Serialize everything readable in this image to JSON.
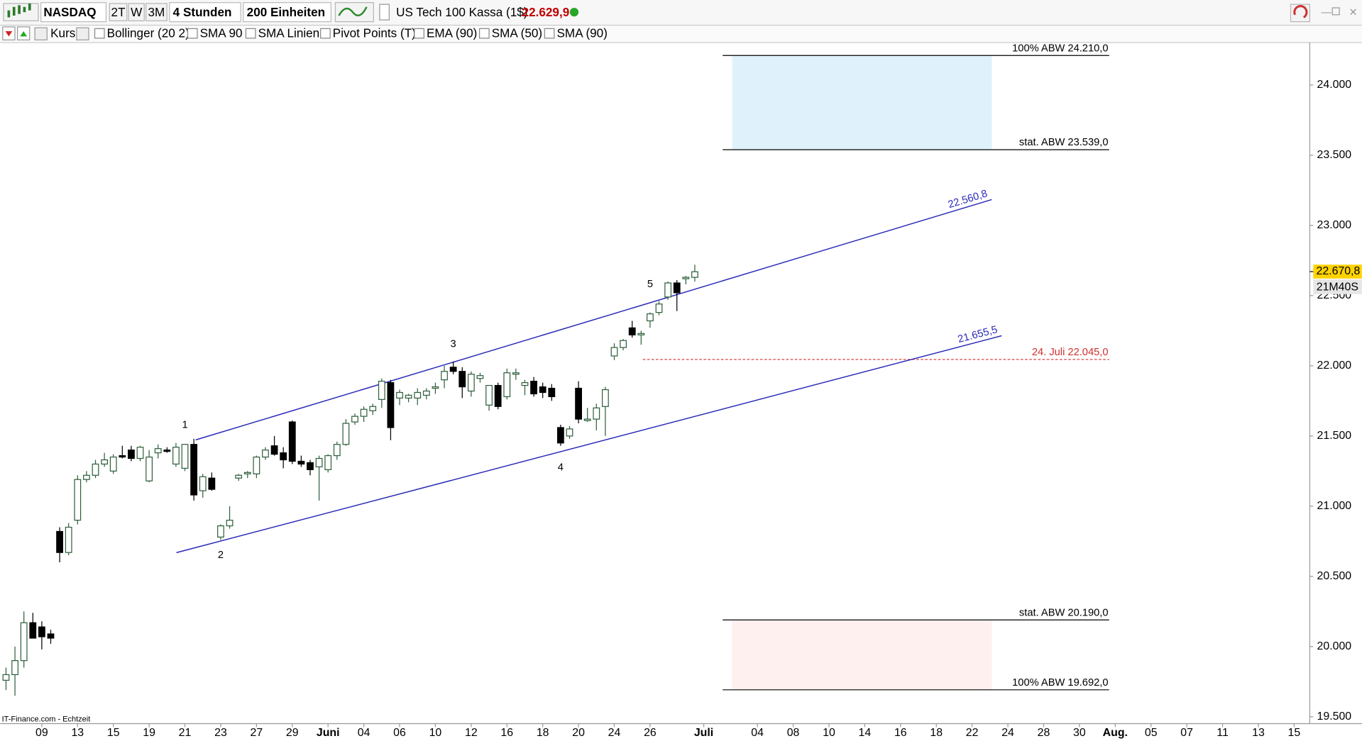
{
  "toolbar": {
    "symbol": "NASDAQ",
    "periods": [
      "2T",
      "W",
      "3M"
    ],
    "interval": "4 Stunden",
    "units": "200 Einheiten",
    "instrument": "US Tech 100 Kassa (1$)",
    "last_price": "22.629,9",
    "indicators": [
      "Kurs",
      "Bollinger (20 2)",
      "SMA 90",
      "SMA Linien",
      "Pivot Points (T)",
      "EMA (90)",
      "SMA (50)",
      "SMA (90)"
    ]
  },
  "chart_data": {
    "type": "candlestick",
    "source": "IT-Finance.com - Echtzeit",
    "x": [
      -4,
      -3,
      -2,
      -1,
      0,
      1,
      2,
      3,
      4,
      5,
      6,
      7,
      8,
      9,
      10,
      11,
      12,
      13,
      14,
      15,
      16,
      17,
      18,
      19,
      20,
      21,
      22,
      23,
      24,
      25,
      26,
      27,
      28,
      29,
      30,
      31,
      32,
      33,
      34,
      35,
      36,
      37,
      38,
      39,
      40,
      41,
      42,
      43,
      44,
      45,
      46,
      47,
      48,
      49,
      50,
      51,
      52,
      53,
      54,
      55,
      56,
      57,
      58,
      59,
      60,
      61,
      62,
      63,
      64,
      65,
      66,
      67,
      68,
      69,
      70,
      71,
      72,
      73
    ],
    "open": [
      19760,
      19800,
      19900,
      20170,
      20140,
      20090,
      20820,
      20670,
      20900,
      21190,
      21220,
      21300,
      21250,
      21360,
      21400,
      21340,
      21180,
      21380,
      21400,
      21300,
      21270,
      21440,
      21110,
      21200,
      20780,
      20860,
      21200,
      21230,
      21230,
      21350,
      21430,
      21380,
      21600,
      21320,
      21310,
      21280,
      21260,
      21360,
      21440,
      21600,
      21640,
      21680,
      21760,
      21880,
      21770,
      21770,
      21770,
      21790,
      21840,
      21900,
      21990,
      21960,
      21820,
      21910,
      21720,
      21860,
      21780,
      21940,
      21860,
      21890,
      21850,
      21840,
      21560,
      21500,
      21840,
      21610,
      21620,
      21710,
      22070,
      22130,
      22270,
      22220,
      22320,
      22380,
      22490,
      22590,
      22620,
      22630
    ],
    "high": [
      19850,
      20000,
      20250,
      20240,
      20180,
      20120,
      20850,
      20880,
      21220,
      21250,
      21330,
      21380,
      21370,
      21430,
      21430,
      21430,
      21400,
      21440,
      21420,
      21450,
      21440,
      21480,
      21230,
      21240,
      20870,
      21000,
      21230,
      21250,
      21360,
      21420,
      21500,
      21420,
      21610,
      21360,
      21330,
      21360,
      21370,
      21460,
      21620,
      21660,
      21710,
      21730,
      21910,
      21900,
      21830,
      21800,
      21840,
      21840,
      21880,
      22000,
      22030,
      21990,
      21960,
      21950,
      21860,
      21880,
      21980,
      21980,
      21900,
      21920,
      21880,
      21870,
      21580,
      21570,
      21890,
      21700,
      21730,
      21850,
      22160,
      22190,
      22320,
      22250,
      22380,
      22460,
      22600,
      22610,
      22640,
      22720
    ],
    "low": [
      19690,
      19650,
      19850,
      20060,
      19980,
      20020,
      20600,
      20650,
      20870,
      21170,
      21200,
      21280,
      21230,
      21340,
      21320,
      21320,
      21170,
      21340,
      21380,
      21280,
      21250,
      21040,
      21060,
      21110,
      20760,
      20840,
      21180,
      21200,
      21200,
      21330,
      21360,
      21270,
      21300,
      21280,
      21220,
      21040,
      21240,
      21330,
      21430,
      21580,
      21600,
      21650,
      21700,
      21470,
      21720,
      21740,
      21720,
      21760,
      21800,
      21840,
      21940,
      21770,
      21780,
      21880,
      21680,
      21690,
      21760,
      21900,
      21790,
      21780,
      21770,
      21750,
      21430,
      21480,
      21590,
      21600,
      21540,
      21500,
      22040,
      22110,
      22200,
      22150,
      22270,
      22360,
      22470,
      22390,
      22580,
      22600
    ],
    "close": [
      19800,
      19900,
      20170,
      20060,
      20070,
      20060,
      20670,
      20850,
      21190,
      21220,
      21300,
      21330,
      21350,
      21350,
      21340,
      21420,
      21350,
      21410,
      21390,
      21420,
      21440,
      21080,
      21210,
      21120,
      20860,
      20900,
      21220,
      21240,
      21350,
      21400,
      21370,
      21330,
      21320,
      21300,
      21260,
      21340,
      21360,
      21440,
      21590,
      21640,
      21690,
      21710,
      21890,
      21560,
      21810,
      21790,
      21810,
      21820,
      21850,
      21960,
      21960,
      21850,
      21940,
      21930,
      21860,
      21710,
      21950,
      21950,
      21880,
      21800,
      21810,
      21780,
      21450,
      21550,
      21620,
      21620,
      21700,
      21830,
      22130,
      22180,
      22220,
      22230,
      22370,
      22440,
      22590,
      22520,
      22630,
      22670
    ],
    "up_color": "#ffffff",
    "up_edge": "#2f5f3c",
    "down_color": "#000000",
    "xlim": [
      -4.66,
      141.75
    ],
    "xticks": [
      {
        "value": 0,
        "label": "09"
      },
      {
        "value": 4,
        "label": "13"
      },
      {
        "value": 8,
        "label": "15"
      },
      {
        "value": 12,
        "label": "19"
      },
      {
        "value": 16,
        "label": "21"
      },
      {
        "value": 20,
        "label": "23"
      },
      {
        "value": 24,
        "label": "27"
      },
      {
        "value": 28,
        "label": "29"
      },
      {
        "value": 32,
        "label": "Juni"
      },
      {
        "value": 36,
        "label": "04"
      },
      {
        "value": 40,
        "label": "06"
      },
      {
        "value": 44,
        "label": "10"
      },
      {
        "value": 48,
        "label": "12"
      },
      {
        "value": 52,
        "label": "16"
      },
      {
        "value": 56,
        "label": "18"
      },
      {
        "value": 60,
        "label": "20"
      },
      {
        "value": 64,
        "label": "24"
      },
      {
        "value": 68,
        "label": "26"
      },
      {
        "value": 74,
        "label": "Juli"
      },
      {
        "value": 80,
        "label": "04"
      },
      {
        "value": 84,
        "label": "08"
      },
      {
        "value": 88,
        "label": "10"
      },
      {
        "value": 92,
        "label": "14"
      },
      {
        "value": 96,
        "label": "16"
      },
      {
        "value": 100,
        "label": "18"
      },
      {
        "value": 104,
        "label": "22"
      },
      {
        "value": 108,
        "label": "24"
      },
      {
        "value": 112,
        "label": "28"
      },
      {
        "value": 116,
        "label": "30"
      },
      {
        "value": 120,
        "label": "Aug."
      },
      {
        "value": 124,
        "label": "05"
      },
      {
        "value": 128,
        "label": "07"
      },
      {
        "value": 132,
        "label": "11"
      },
      {
        "value": 136,
        "label": "13"
      },
      {
        "value": 140,
        "label": "15"
      }
    ],
    "ylim": [
      19451,
      24420
    ],
    "yticks": [
      {
        "value": 19500,
        "label": "19.500"
      },
      {
        "value": 20000,
        "label": "20.000"
      },
      {
        "value": 20500,
        "label": "20.500"
      },
      {
        "value": 21000,
        "label": "21.000"
      },
      {
        "value": 21500,
        "label": "21.500"
      },
      {
        "value": 22000,
        "label": "22.000"
      },
      {
        "value": 22500,
        "label": "22.500"
      },
      {
        "value": 23000,
        "label": "23.000"
      },
      {
        "value": 23500,
        "label": "23.500"
      },
      {
        "value": 24000,
        "label": "24.000"
      }
    ],
    "current_price": {
      "value": 22670.8,
      "label": "22.670,8"
    },
    "countdown": "21M40S",
    "zones": [
      {
        "color": "#dff2fc",
        "levels": [
          {
            "value": 24210,
            "label": "100% ABW 24.210,0"
          },
          {
            "value": 23539,
            "label": "stat. ABW 23.539,0"
          }
        ]
      },
      {
        "color": "#fdf0ee",
        "levels": [
          {
            "value": 20190,
            "label": "stat. ABW 20.190,0"
          },
          {
            "value": 19692,
            "label": "100% ABW 19.692,0"
          }
        ]
      }
    ],
    "marker": {
      "value": 22045,
      "label": "24. Juli 22.045,0",
      "color": "#d03030"
    },
    "trendlines": [
      {
        "x": [
          17.2,
          106.2
        ],
        "y": [
          21472,
          23184
        ],
        "label": "22.560,8",
        "color": "#2a2ab8"
      },
      {
        "x": [
          15.05,
          107.3
        ],
        "y": [
          20669,
          22214
        ],
        "label": "21.655,5",
        "color": "#2a2ab8"
      }
    ],
    "wave_labels": [
      {
        "text": "1",
        "x": 16,
        "y": 21577
      },
      {
        "text": "2",
        "x": 20,
        "y": 20650
      },
      {
        "text": "3",
        "x": 46,
        "y": 22152
      },
      {
        "text": "4",
        "x": 58,
        "y": 21275
      },
      {
        "text": "5",
        "x": 68,
        "y": 22579
      }
    ]
  }
}
